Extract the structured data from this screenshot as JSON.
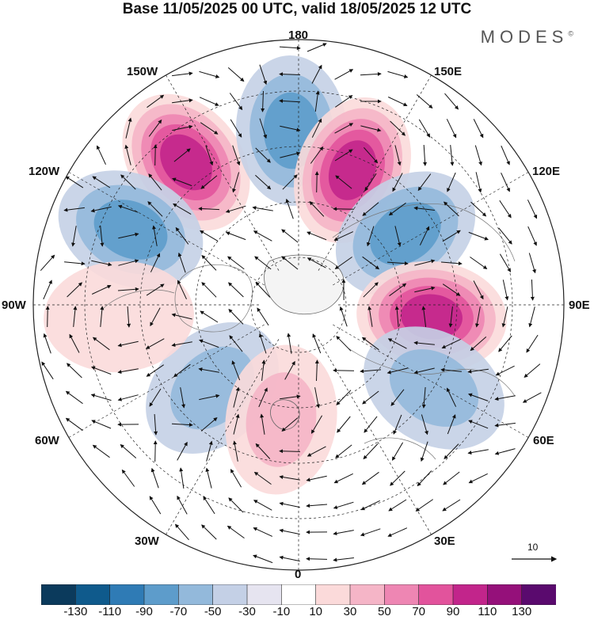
{
  "title": "Base 11/05/2025 00 UTC, valid 18/05/2025 12 UTC",
  "brand": {
    "name": "MODES",
    "mark": "©"
  },
  "longitude_labels": {
    "top": "180",
    "bottom": "0",
    "left": "90W",
    "right": "90E",
    "upper_left_1": "150W",
    "upper_left_2": "120W",
    "upper_right_1": "150E",
    "upper_right_2": "120E",
    "lower_left_1": "60W",
    "lower_left_2": "30W",
    "lower_right_1": "60E",
    "lower_right_2": "30E"
  },
  "wind_scale": {
    "label": "10"
  },
  "colorbar": {
    "ticks": [
      "-130",
      "-110",
      "-90",
      "-70",
      "-50",
      "-30",
      "-10",
      "10",
      "30",
      "50",
      "70",
      "90",
      "110",
      "130"
    ],
    "colors": [
      "#0b3a5c",
      "#0f5a8c",
      "#2f7bb5",
      "#5d9ccb",
      "#93b9db",
      "#c4d0e6",
      "#e6e4f0",
      "#ffffff",
      "#fbdada",
      "#f5b5c7",
      "#ee86b3",
      "#e2539c",
      "#c2258b",
      "#95107a",
      "#5a0a6e"
    ]
  },
  "anomaly_centers": [
    {
      "kind": "positive",
      "level": 110,
      "sector": "150W"
    },
    {
      "kind": "negative",
      "level": -70,
      "sector": "180"
    },
    {
      "kind": "positive",
      "level": 110,
      "sector": "150E"
    },
    {
      "kind": "negative",
      "level": -70,
      "sector": "120W"
    },
    {
      "kind": "negative",
      "level": -70,
      "sector": "120E"
    },
    {
      "kind": "positive",
      "level": 110,
      "sector": "90E"
    },
    {
      "kind": "negative",
      "level": -50,
      "sector": "60E"
    },
    {
      "kind": "negative",
      "level": -50,
      "sector": "60W"
    },
    {
      "kind": "positive",
      "level": 50,
      "sector": "0"
    },
    {
      "kind": "positive",
      "level": 30,
      "sector": "90W"
    }
  ]
}
